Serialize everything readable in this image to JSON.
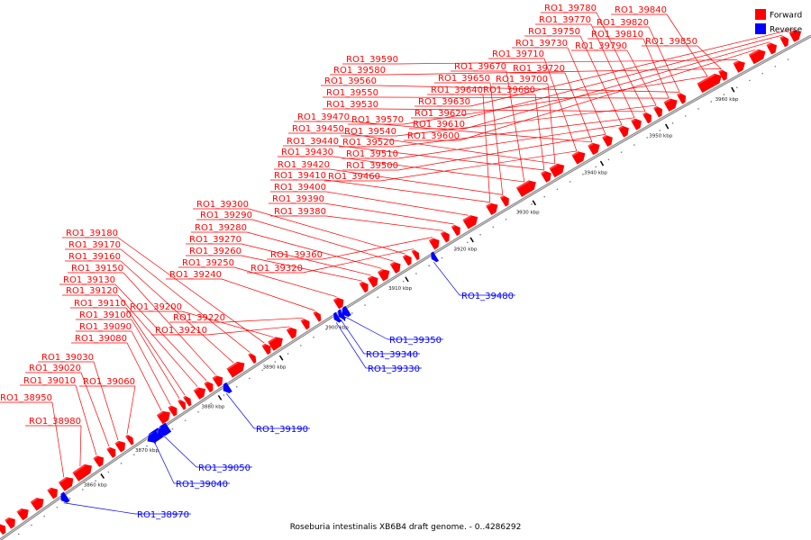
{
  "caption": "Roseburia intestinalis XB6B4 draft genome. - 0..4286292",
  "legend": [
    {
      "label": "Forward",
      "color": "#ff0000"
    },
    {
      "label": "Reverse",
      "color": "#0000ff"
    }
  ],
  "axis_ticks": [
    "3860 kbp",
    "3870 kbp",
    "3880 kbp",
    "3890 kbp",
    "3900 kbp",
    "3910 kbp",
    "3920 kbp",
    "3930 kbp",
    "3940 kbp",
    "3950 kbp",
    "3960 kbp"
  ],
  "forward_genes": [
    "RO1_38950",
    "RO1_38980",
    "RO1_39010",
    "RO1_39020",
    "RO1_39030",
    "RO1_39060",
    "RO1_39080",
    "RO1_39090",
    "RO1_39100",
    "RO1_39110",
    "RO1_39120",
    "RO1_39130",
    "RO1_39150",
    "RO1_39160",
    "RO1_39170",
    "RO1_39180",
    "RO1_39200",
    "RO1_39210",
    "RO1_39220",
    "RO1_39240",
    "RO1_39250",
    "RO1_39260",
    "RO1_39270",
    "RO1_39280",
    "RO1_39290",
    "RO1_39300",
    "RO1_39320",
    "RO1_39360",
    "RO1_39380",
    "RO1_39390",
    "RO1_39400",
    "RO1_39410",
    "RO1_39420",
    "RO1_39430",
    "RO1_39440",
    "RO1_39450",
    "RO1_39460",
    "RO1_39470",
    "RO1_39500",
    "RO1_39510",
    "RO1_39520",
    "RO1_39530",
    "RO1_39540",
    "RO1_39550",
    "RO1_39560",
    "RO1_39570",
    "RO1_39580",
    "RO1_39590",
    "RO1_39600",
    "RO1_39610",
    "RO1_39620",
    "RO1_39630",
    "RO1_39640",
    "RO1_39650",
    "RO1_39670",
    "RO1_39680",
    "RO1_39700",
    "RO1_39710",
    "RO1_39720",
    "RO1_39730",
    "RO1_39750",
    "RO1_39770",
    "RO1_39780",
    "RO1_39790",
    "RO1_39810",
    "RO1_39820",
    "RO1_39840",
    "RO1_39850"
  ],
  "reverse_genes": [
    "RO1_38970",
    "RO1_39040",
    "RO1_39050",
    "RO1_39190",
    "RO1_39330",
    "RO1_39340",
    "RO1_39350",
    "RO1_39480"
  ]
}
